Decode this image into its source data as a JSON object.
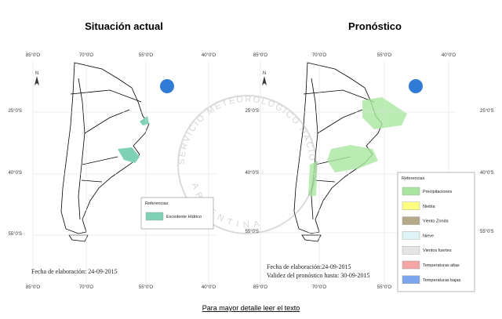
{
  "header": {
    "left_title": "Situación actual",
    "right_title": "Pronóstico"
  },
  "maps": [
    {
      "top_labels": [
        "85°0'O",
        "70°0'O",
        "55°0'O",
        "40°0'O"
      ],
      "bottom_labels": [
        "85°0'O",
        "70°0'O",
        "55°0'O",
        "40°0'O"
      ],
      "left_labels": [
        "25°0'S",
        "40°0'S",
        "55°0'S"
      ],
      "north": "N",
      "legend": {
        "title": "Referencias",
        "items": [
          {
            "label": "Excedente Hídrico",
            "color": "#7fd1b5"
          }
        ]
      },
      "notes": [
        "Fecha de elaboración: 24-09-2015"
      ]
    },
    {
      "top_labels": [
        "85°0'O",
        "70°0'O",
        "55°0'O",
        "40°0'O"
      ],
      "bottom_labels": [
        "85°0'O",
        "70°0'O",
        "55°0'O",
        "40°0'O"
      ],
      "left_labels": [
        "25°0'S",
        "40°0'S",
        "55°0'S"
      ],
      "right_labels": [
        "25°0'S",
        "40°0'S",
        "55°0'S"
      ],
      "north": "N",
      "legend": {
        "title": "Referencias",
        "items": [
          {
            "label": "Precipitaciones",
            "color": "#a8e6a0"
          },
          {
            "label": "Niebla",
            "color": "#ffff80"
          },
          {
            "label": "Viento Zonda",
            "color": "#b5a98a"
          },
          {
            "label": "Nieve",
            "color": "#dff4f6"
          },
          {
            "label": "Vientos fuertes",
            "color": "#e4e4e4"
          },
          {
            "label": "Temperaturas altas",
            "color": "#f6a5a5"
          },
          {
            "label": "Temperaturas bajas",
            "color": "#7ea6ee"
          }
        ]
      },
      "notes": [
        "Fecha de elaboración:24-09-2015",
        "Validez del pronóstico hasta: 30-09-2015"
      ]
    }
  ],
  "watermark": {
    "top": "SERVICIO METEOROLOGICO NACIONAL",
    "bottom": "ARGENTINA"
  },
  "footer": {
    "link": "Para mayor detalle leer el texto"
  }
}
